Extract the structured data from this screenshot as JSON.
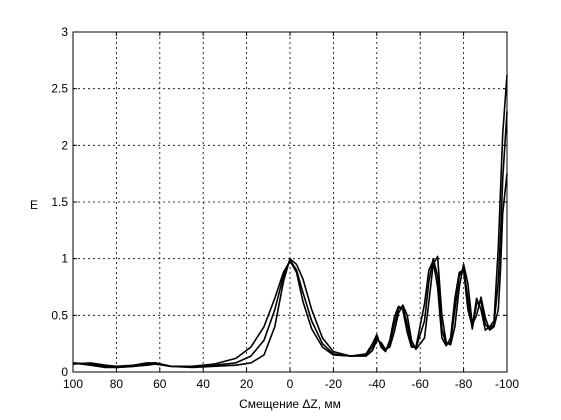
{
  "chart_data": {
    "type": "line",
    "xlabel": "Смещение ΔZ, мм",
    "ylabel": "E",
    "xlim": [
      100,
      -100
    ],
    "ylim": [
      0,
      3
    ],
    "x_reversed": true,
    "grid": true,
    "xticks": [
      100,
      80,
      60,
      40,
      20,
      0,
      -20,
      -40,
      -60,
      -80,
      -100
    ],
    "xtick_labels": [
      "100",
      "80",
      "60",
      "40",
      "20",
      "0",
      "-20",
      "-40",
      "-60",
      "-80",
      "-100"
    ],
    "yticks": [
      0,
      0.5,
      1,
      1.5,
      2,
      2.5,
      3
    ],
    "ytick_labels": [
      "0",
      "0.5",
      "1",
      "1.5",
      "2",
      "2.5",
      "3"
    ],
    "series": [
      {
        "x": [
          100,
          92,
          85,
          80,
          72,
          66,
          62,
          55,
          45,
          35,
          25,
          18,
          12,
          7,
          3,
          0,
          -3,
          -6,
          -10,
          -15,
          -20,
          -28,
          -35,
          -38,
          -40,
          -42,
          -44,
          -46,
          -48,
          -50,
          -52,
          -54,
          -56,
          -58,
          -62,
          -64,
          -66,
          -68,
          -70,
          -72,
          -74,
          -76,
          -78,
          -80,
          -82,
          -84,
          -86,
          -88,
          -90,
          -92,
          -94,
          -96,
          -97,
          -98,
          -100
        ],
        "y": [
          0.07,
          0.08,
          0.06,
          0.05,
          0.06,
          0.08,
          0.08,
          0.05,
          0.05,
          0.07,
          0.12,
          0.22,
          0.4,
          0.65,
          0.88,
          0.98,
          0.88,
          0.62,
          0.38,
          0.22,
          0.15,
          0.14,
          0.16,
          0.25,
          0.33,
          0.22,
          0.18,
          0.28,
          0.48,
          0.58,
          0.55,
          0.35,
          0.22,
          0.22,
          0.6,
          0.9,
          0.98,
          0.75,
          0.3,
          0.23,
          0.3,
          0.65,
          0.88,
          0.9,
          0.55,
          0.4,
          0.65,
          0.55,
          0.37,
          0.4,
          0.45,
          1.1,
          1.6,
          2.1,
          2.62
        ]
      },
      {
        "x": [
          100,
          92,
          85,
          80,
          72,
          66,
          62,
          55,
          45,
          35,
          25,
          18,
          12,
          7,
          3,
          0,
          -3,
          -6,
          -10,
          -15,
          -20,
          -28,
          -35,
          -38,
          -40,
          -42,
          -44,
          -46,
          -48,
          -50,
          -52,
          -54,
          -56,
          -58,
          -62,
          -64,
          -66,
          -68,
          -70,
          -72,
          -74,
          -76,
          -78,
          -80,
          -82,
          -84,
          -86,
          -88,
          -90,
          -92,
          -94,
          -96,
          -97,
          -98,
          -100
        ],
        "y": [
          0.08,
          0.07,
          0.05,
          0.04,
          0.05,
          0.07,
          0.08,
          0.05,
          0.05,
          0.06,
          0.08,
          0.14,
          0.28,
          0.55,
          0.85,
          0.99,
          0.9,
          0.7,
          0.45,
          0.25,
          0.16,
          0.14,
          0.15,
          0.22,
          0.3,
          0.24,
          0.19,
          0.25,
          0.42,
          0.56,
          0.58,
          0.42,
          0.24,
          0.21,
          0.45,
          0.8,
          1.0,
          0.85,
          0.38,
          0.24,
          0.26,
          0.55,
          0.85,
          0.92,
          0.65,
          0.38,
          0.6,
          0.62,
          0.42,
          0.38,
          0.42,
          0.8,
          1.2,
          1.7,
          2.3
        ]
      },
      {
        "x": [
          100,
          92,
          85,
          80,
          72,
          66,
          62,
          55,
          45,
          35,
          25,
          18,
          12,
          7,
          3,
          0,
          -3,
          -6,
          -10,
          -15,
          -20,
          -28,
          -35,
          -38,
          -40,
          -42,
          -44,
          -46,
          -48,
          -50,
          -52,
          -54,
          -56,
          -58,
          -62,
          -64,
          -66,
          -68,
          -70,
          -72,
          -74,
          -76,
          -78,
          -80,
          -82,
          -84,
          -86,
          -88,
          -90,
          -92,
          -94,
          -96,
          -97,
          -98,
          -100
        ],
        "y": [
          0.08,
          0.06,
          0.04,
          0.04,
          0.05,
          0.06,
          0.07,
          0.05,
          0.04,
          0.05,
          0.06,
          0.08,
          0.15,
          0.4,
          0.8,
          1.0,
          0.95,
          0.82,
          0.55,
          0.3,
          0.18,
          0.14,
          0.14,
          0.19,
          0.28,
          0.26,
          0.2,
          0.22,
          0.35,
          0.52,
          0.59,
          0.5,
          0.28,
          0.2,
          0.3,
          0.62,
          0.95,
          1.02,
          0.5,
          0.26,
          0.24,
          0.4,
          0.75,
          0.95,
          0.78,
          0.42,
          0.5,
          0.66,
          0.48,
          0.37,
          0.4,
          0.55,
          0.9,
          1.4,
          1.75
        ]
      }
    ]
  }
}
